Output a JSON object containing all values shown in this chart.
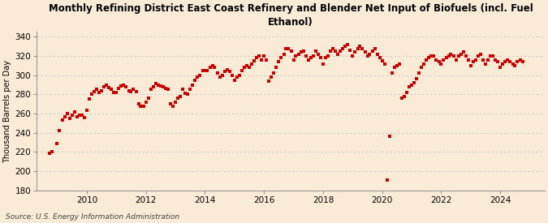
{
  "title": "Monthly Refining District East Coast Refinery and Blender Net Input of Biofuels (incl. Fuel\nEthanol)",
  "ylabel": "Thousand Barrels per Day",
  "source": "Source: U.S. Energy Information Administration",
  "background_color": "#faebd7",
  "dot_color": "#cc0000",
  "grid_color": "#c8c8c8",
  "ylim": [
    180,
    345
  ],
  "yticks": [
    180,
    200,
    220,
    240,
    260,
    280,
    300,
    320,
    340
  ],
  "xticks": [
    2010,
    2012,
    2014,
    2016,
    2018,
    2020,
    2022,
    2024
  ],
  "xlim": [
    2008.3,
    2025.5
  ],
  "data": [
    [
      2008.75,
      219
    ],
    [
      2008.83,
      220
    ],
    [
      2009.0,
      229
    ],
    [
      2009.08,
      242
    ],
    [
      2009.17,
      253
    ],
    [
      2009.25,
      257
    ],
    [
      2009.33,
      260
    ],
    [
      2009.42,
      255
    ],
    [
      2009.5,
      258
    ],
    [
      2009.58,
      262
    ],
    [
      2009.67,
      257
    ],
    [
      2009.75,
      258
    ],
    [
      2009.83,
      258
    ],
    [
      2009.92,
      256
    ],
    [
      2010.0,
      263
    ],
    [
      2010.08,
      275
    ],
    [
      2010.17,
      280
    ],
    [
      2010.25,
      283
    ],
    [
      2010.33,
      285
    ],
    [
      2010.42,
      282
    ],
    [
      2010.5,
      284
    ],
    [
      2010.58,
      288
    ],
    [
      2010.67,
      290
    ],
    [
      2010.75,
      287
    ],
    [
      2010.83,
      285
    ],
    [
      2010.92,
      282
    ],
    [
      2011.0,
      282
    ],
    [
      2011.08,
      286
    ],
    [
      2011.17,
      289
    ],
    [
      2011.25,
      290
    ],
    [
      2011.33,
      288
    ],
    [
      2011.42,
      284
    ],
    [
      2011.5,
      283
    ],
    [
      2011.58,
      285
    ],
    [
      2011.67,
      283
    ],
    [
      2011.75,
      270
    ],
    [
      2011.83,
      268
    ],
    [
      2011.92,
      268
    ],
    [
      2012.0,
      272
    ],
    [
      2012.08,
      276
    ],
    [
      2012.17,
      285
    ],
    [
      2012.25,
      288
    ],
    [
      2012.33,
      291
    ],
    [
      2012.42,
      290
    ],
    [
      2012.5,
      289
    ],
    [
      2012.58,
      288
    ],
    [
      2012.67,
      286
    ],
    [
      2012.75,
      285
    ],
    [
      2012.83,
      270
    ],
    [
      2012.92,
      268
    ],
    [
      2013.0,
      272
    ],
    [
      2013.08,
      276
    ],
    [
      2013.17,
      278
    ],
    [
      2013.25,
      285
    ],
    [
      2013.33,
      281
    ],
    [
      2013.42,
      280
    ],
    [
      2013.5,
      285
    ],
    [
      2013.58,
      290
    ],
    [
      2013.67,
      295
    ],
    [
      2013.75,
      298
    ],
    [
      2013.83,
      300
    ],
    [
      2013.92,
      305
    ],
    [
      2014.0,
      305
    ],
    [
      2014.08,
      305
    ],
    [
      2014.17,
      308
    ],
    [
      2014.25,
      310
    ],
    [
      2014.33,
      308
    ],
    [
      2014.42,
      302
    ],
    [
      2014.5,
      298
    ],
    [
      2014.58,
      300
    ],
    [
      2014.67,
      304
    ],
    [
      2014.75,
      306
    ],
    [
      2014.83,
      304
    ],
    [
      2014.92,
      300
    ],
    [
      2015.0,
      295
    ],
    [
      2015.08,
      298
    ],
    [
      2015.17,
      300
    ],
    [
      2015.25,
      305
    ],
    [
      2015.33,
      308
    ],
    [
      2015.42,
      310
    ],
    [
      2015.5,
      308
    ],
    [
      2015.58,
      312
    ],
    [
      2015.67,
      315
    ],
    [
      2015.75,
      318
    ],
    [
      2015.83,
      320
    ],
    [
      2015.92,
      316
    ],
    [
      2016.0,
      320
    ],
    [
      2016.08,
      316
    ],
    [
      2016.17,
      294
    ],
    [
      2016.25,
      298
    ],
    [
      2016.33,
      302
    ],
    [
      2016.42,
      308
    ],
    [
      2016.5,
      314
    ],
    [
      2016.58,
      318
    ],
    [
      2016.67,
      322
    ],
    [
      2016.75,
      328
    ],
    [
      2016.83,
      328
    ],
    [
      2016.92,
      325
    ],
    [
      2017.0,
      316
    ],
    [
      2017.08,
      320
    ],
    [
      2017.17,
      322
    ],
    [
      2017.25,
      324
    ],
    [
      2017.33,
      325
    ],
    [
      2017.42,
      320
    ],
    [
      2017.5,
      316
    ],
    [
      2017.58,
      318
    ],
    [
      2017.67,
      320
    ],
    [
      2017.75,
      325
    ],
    [
      2017.83,
      322
    ],
    [
      2017.92,
      318
    ],
    [
      2018.0,
      312
    ],
    [
      2018.08,
      318
    ],
    [
      2018.17,
      320
    ],
    [
      2018.25,
      325
    ],
    [
      2018.33,
      328
    ],
    [
      2018.42,
      325
    ],
    [
      2018.5,
      322
    ],
    [
      2018.58,
      325
    ],
    [
      2018.67,
      328
    ],
    [
      2018.75,
      330
    ],
    [
      2018.83,
      332
    ],
    [
      2018.92,
      326
    ],
    [
      2019.0,
      320
    ],
    [
      2019.08,
      324
    ],
    [
      2019.17,
      328
    ],
    [
      2019.25,
      330
    ],
    [
      2019.33,
      328
    ],
    [
      2019.42,
      324
    ],
    [
      2019.5,
      320
    ],
    [
      2019.58,
      322
    ],
    [
      2019.67,
      325
    ],
    [
      2019.75,
      328
    ],
    [
      2019.83,
      322
    ],
    [
      2019.92,
      318
    ],
    [
      2020.0,
      315
    ],
    [
      2020.08,
      312
    ],
    [
      2020.17,
      191
    ],
    [
      2020.25,
      236
    ],
    [
      2020.33,
      302
    ],
    [
      2020.42,
      308
    ],
    [
      2020.5,
      310
    ],
    [
      2020.58,
      312
    ],
    [
      2020.67,
      276
    ],
    [
      2020.75,
      278
    ],
    [
      2020.83,
      282
    ],
    [
      2020.92,
      288
    ],
    [
      2021.0,
      290
    ],
    [
      2021.08,
      292
    ],
    [
      2021.17,
      296
    ],
    [
      2021.25,
      302
    ],
    [
      2021.33,
      308
    ],
    [
      2021.42,
      312
    ],
    [
      2021.5,
      316
    ],
    [
      2021.58,
      318
    ],
    [
      2021.67,
      320
    ],
    [
      2021.75,
      320
    ],
    [
      2021.83,
      316
    ],
    [
      2021.92,
      314
    ],
    [
      2022.0,
      312
    ],
    [
      2022.08,
      316
    ],
    [
      2022.17,
      318
    ],
    [
      2022.25,
      320
    ],
    [
      2022.33,
      322
    ],
    [
      2022.42,
      320
    ],
    [
      2022.5,
      316
    ],
    [
      2022.58,
      320
    ],
    [
      2022.67,
      322
    ],
    [
      2022.75,
      324
    ],
    [
      2022.83,
      320
    ],
    [
      2022.92,
      316
    ],
    [
      2023.0,
      310
    ],
    [
      2023.08,
      314
    ],
    [
      2023.17,
      316
    ],
    [
      2023.25,
      320
    ],
    [
      2023.33,
      322
    ],
    [
      2023.42,
      316
    ],
    [
      2023.5,
      312
    ],
    [
      2023.58,
      316
    ],
    [
      2023.67,
      320
    ],
    [
      2023.75,
      320
    ],
    [
      2023.83,
      316
    ],
    [
      2023.92,
      314
    ],
    [
      2024.0,
      308
    ],
    [
      2024.08,
      312
    ],
    [
      2024.17,
      314
    ],
    [
      2024.25,
      316
    ],
    [
      2024.33,
      314
    ],
    [
      2024.42,
      312
    ],
    [
      2024.5,
      310
    ],
    [
      2024.58,
      314
    ],
    [
      2024.67,
      316
    ],
    [
      2024.75,
      314
    ]
  ]
}
